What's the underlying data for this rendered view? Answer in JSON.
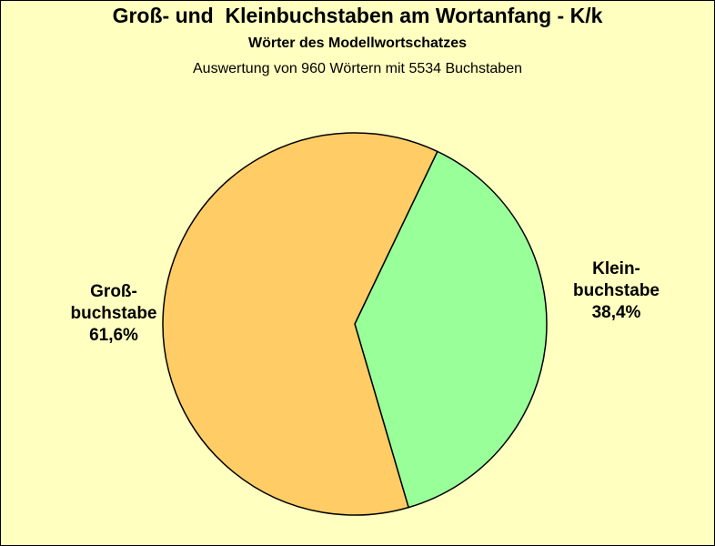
{
  "title": "Groß- und  Kleinbuchstaben am Wortanfang - K/k",
  "subtitle": "Wörter des Modellwortschatzes",
  "subtitle2": "Auswertung von 960 Wörtern mit 5534 Buchstaben",
  "chart_data": {
    "type": "pie",
    "title": "Groß- und  Kleinbuchstaben am Wortanfang - K/k",
    "subtitle": "Wörter des Modellwortschatzes",
    "categories": [
      "Groß-buchstabe",
      "Klein-buchstabe"
    ],
    "values": [
      61.6,
      38.4
    ],
    "slices": [
      {
        "line1": "Groß-",
        "line2": "buchstabe",
        "pct": "61,6%",
        "value": 61.6,
        "color": "#ffcc66"
      },
      {
        "line1": "Klein-",
        "line2": "buchstabe",
        "pct": "38,4%",
        "value": 38.4,
        "color": "#99ff99"
      }
    ],
    "legend": "none"
  }
}
